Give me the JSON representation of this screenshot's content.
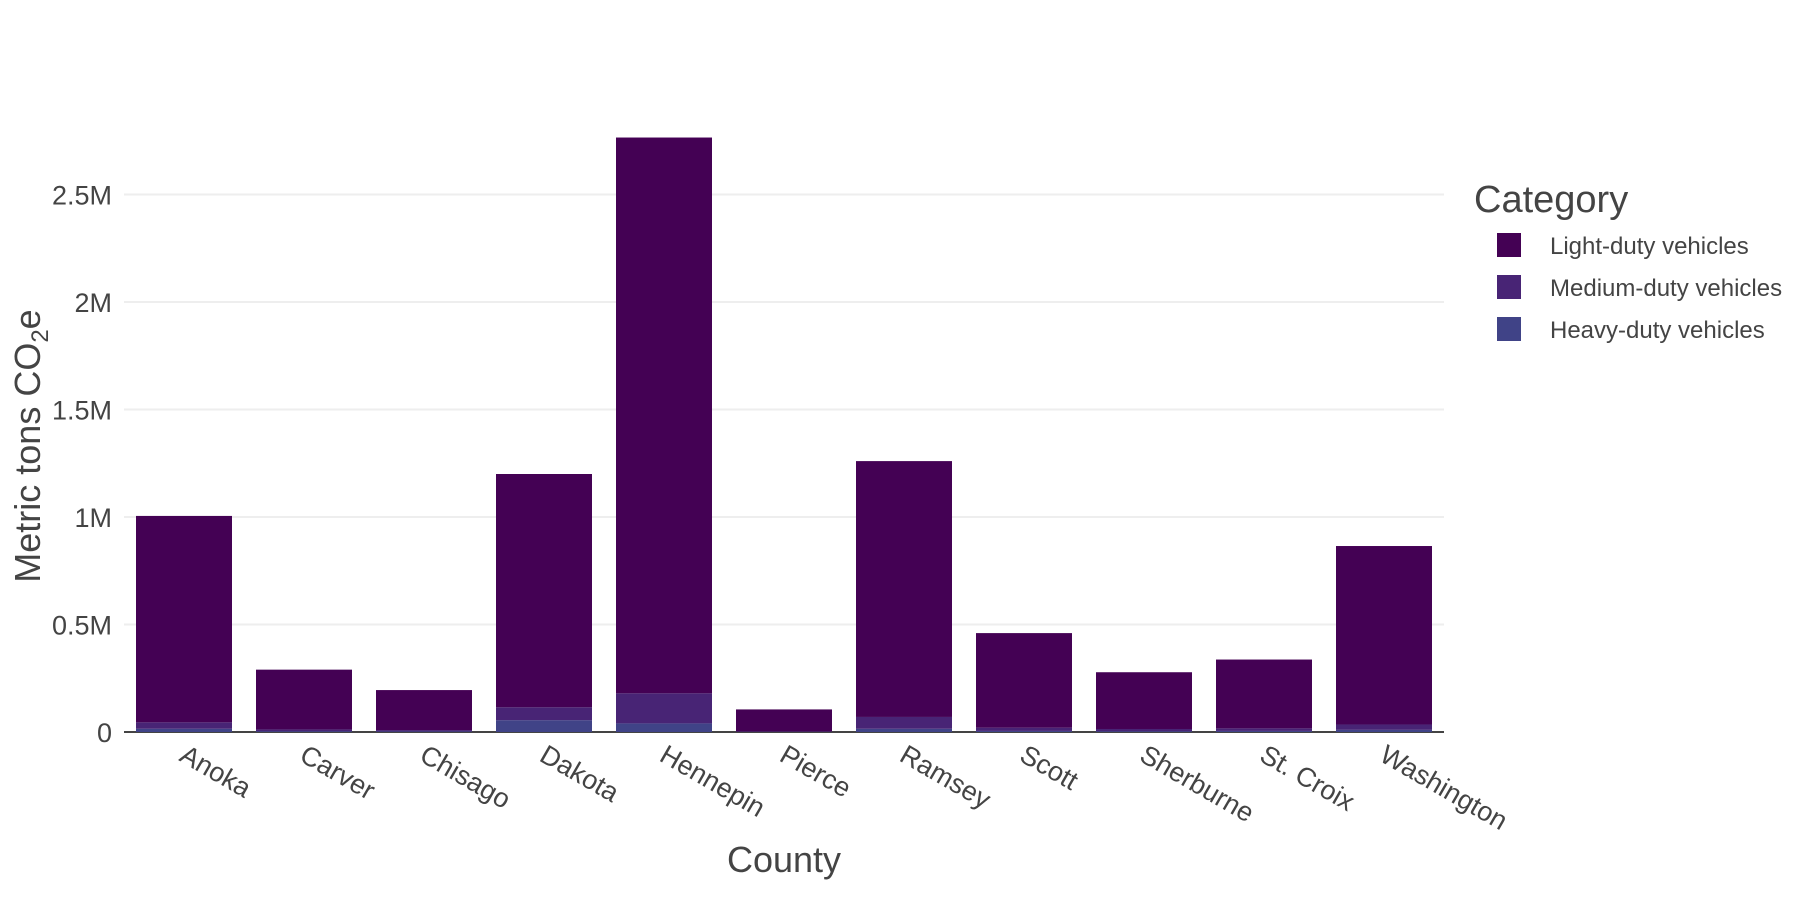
{
  "chart_data": {
    "type": "bar",
    "stacked": true,
    "xlabel": "County",
    "ylabel": "Metric tons CO",
    "ylabel_sub": "2",
    "ylabel_suffix": "e",
    "ylim": [
      0,
      2800000
    ],
    "yticks": [
      0,
      500000,
      1000000,
      1500000,
      2000000,
      2500000
    ],
    "ytick_labels": [
      "0",
      "0.5M",
      "1M",
      "1.5M",
      "2M",
      "2.5M"
    ],
    "grid": true,
    "legend": {
      "title": "Category",
      "position": "right"
    },
    "categories": [
      "Anoka",
      "Carver",
      "Chisago",
      "Dakota",
      "Hennepin",
      "Pierce",
      "Ramsey",
      "Scott",
      "Sherburne",
      "St. Croix",
      "Washington"
    ],
    "series": [
      {
        "name": "Heavy-duty vehicles",
        "color": "#404387",
        "values": [
          15000,
          4000,
          3000,
          55000,
          40000,
          1000,
          15000,
          5000,
          4000,
          5000,
          10000
        ]
      },
      {
        "name": "Medium-duty vehicles",
        "color": "#482475",
        "values": [
          30000,
          8000,
          6000,
          60000,
          140000,
          2000,
          55000,
          15000,
          10000,
          12000,
          25000
        ]
      },
      {
        "name": "Light-duty vehicles",
        "color": "#440154",
        "values": [
          960000,
          278000,
          186000,
          1085000,
          2585000,
          102000,
          1190000,
          440000,
          264000,
          320000,
          830000
        ]
      }
    ],
    "legend_order": [
      "Light-duty vehicles",
      "Medium-duty vehicles",
      "Heavy-duty vehicles"
    ]
  }
}
